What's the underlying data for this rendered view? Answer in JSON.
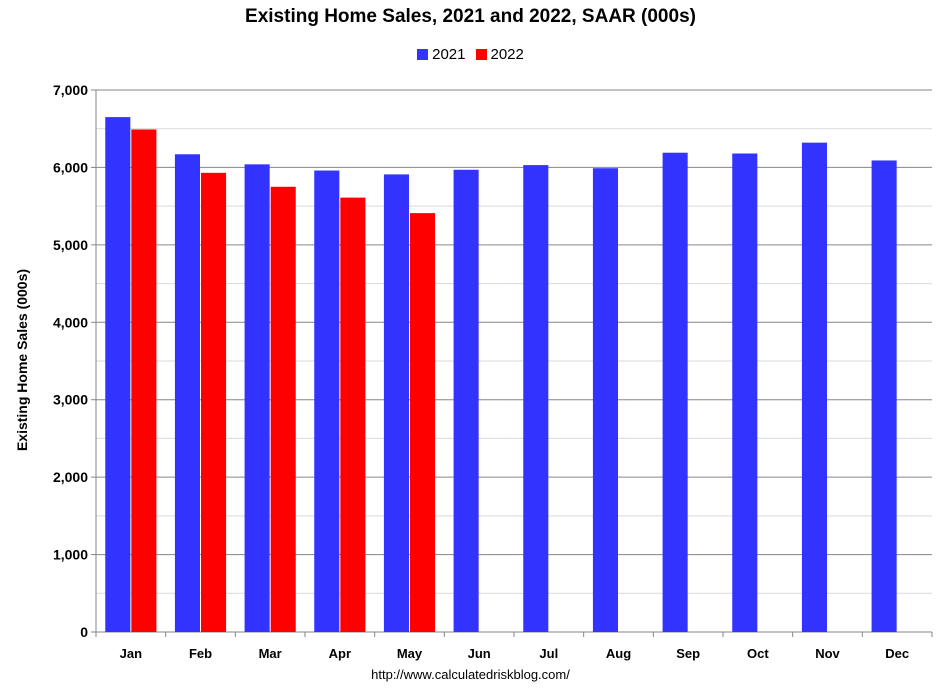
{
  "chart_data": {
    "type": "bar",
    "title": "Existing Home Sales,  2021 and 2022, SAAR (000s)",
    "ylabel": "Existing Home Sales (000s)",
    "xlabel": "",
    "categories": [
      "Jan",
      "Feb",
      "Mar",
      "Apr",
      "May",
      "Jun",
      "Jul",
      "Aug",
      "Sep",
      "Oct",
      "Nov",
      "Dec"
    ],
    "series": [
      {
        "name": "2021",
        "color": "#3333ff",
        "values": [
          6650,
          6170,
          6040,
          5960,
          5910,
          5970,
          6030,
          5990,
          6190,
          6180,
          6320,
          6090
        ]
      },
      {
        "name": "2022",
        "color": "#ff0000",
        "values": [
          6490,
          5930,
          5750,
          5610,
          5410,
          null,
          null,
          null,
          null,
          null,
          null,
          null
        ]
      }
    ],
    "ylim": [
      0,
      7000
    ],
    "yticks": [
      0,
      1000,
      2000,
      3000,
      4000,
      5000,
      6000,
      7000
    ],
    "ytick_labels": [
      "0",
      "1,000",
      "2,000",
      "3,000",
      "4,000",
      "5,000",
      "6,000",
      "7,000"
    ],
    "grid": true,
    "legend_position": "top-center",
    "source": "http://www.calculatedriskblog.com/"
  }
}
